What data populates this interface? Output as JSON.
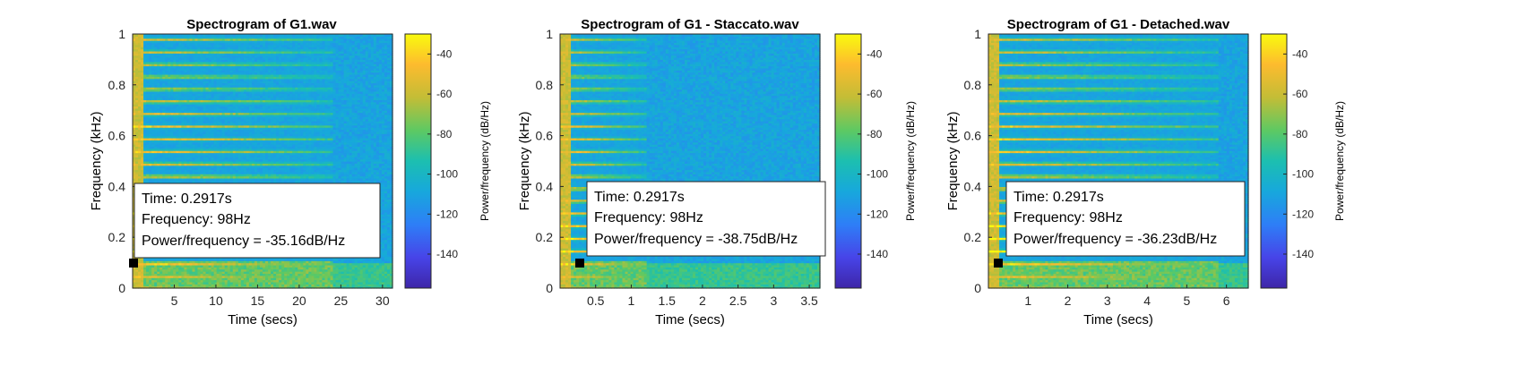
{
  "chart_data": [
    {
      "type": "heatmap",
      "title": "Spectrogram of G1.wav",
      "xlabel": "Time (secs)",
      "ylabel": "Frequency (kHz)",
      "colorbar_label": "Power/frequency (dB/Hz)",
      "xlim": [
        0,
        31.2
      ],
      "ylim": [
        0,
        1
      ],
      "x_ticks": [
        5,
        10,
        15,
        20,
        25,
        30
      ],
      "y_ticks": [
        0,
        0.2,
        0.4,
        0.6,
        0.8,
        1
      ],
      "clim": [
        -157,
        -30
      ],
      "colorbar_ticks": [
        -40,
        -60,
        -80,
        -100,
        -120,
        -140
      ],
      "decay_end_secs": 24,
      "datatip": {
        "time_secs": 0.2917,
        "frequency_hz": 98,
        "time_label": "Time: 0.2917s",
        "frequency_label": "Frequency: 98Hz",
        "power_label": "Power/frequency = -35.16dB/Hz"
      }
    },
    {
      "type": "heatmap",
      "title": "Spectrogram of G1 - Staccato.wav",
      "xlabel": "Time (secs)",
      "ylabel": "Frequency (kHz)",
      "colorbar_label": "Power/frequency (dB/Hz)",
      "xlim": [
        0,
        3.65
      ],
      "ylim": [
        0,
        1
      ],
      "x_ticks": [
        0.5,
        1,
        1.5,
        2,
        2.5,
        3,
        3.5
      ],
      "y_ticks": [
        0,
        0.2,
        0.4,
        0.6,
        0.8,
        1
      ],
      "clim": [
        -157,
        -30
      ],
      "colorbar_ticks": [
        -40,
        -60,
        -80,
        -100,
        -120,
        -140
      ],
      "decay_end_secs": 1.2,
      "datatip": {
        "time_secs": 0.2917,
        "frequency_hz": 98,
        "time_label": "Time: 0.2917s",
        "frequency_label": "Frequency: 98Hz",
        "power_label": "Power/frequency = -38.75dB/Hz"
      }
    },
    {
      "type": "heatmap",
      "title": "Spectrogram of G1 - Detached.wav",
      "xlabel": "Time (secs)",
      "ylabel": "Frequency (kHz)",
      "colorbar_label": "Power/frequency (dB/Hz)",
      "xlim": [
        0,
        6.55
      ],
      "ylim": [
        0,
        1
      ],
      "x_ticks": [
        1,
        2,
        3,
        4,
        5,
        6
      ],
      "y_ticks": [
        0,
        0.2,
        0.4,
        0.6,
        0.8,
        1
      ],
      "clim": [
        -157,
        -30
      ],
      "colorbar_ticks": [
        -40,
        -60,
        -80,
        -100,
        -120,
        -140
      ],
      "decay_end_secs": 5.8,
      "datatip": {
        "time_secs": 0.2917,
        "frequency_hz": 98,
        "time_label": "Time: 0.2917s",
        "frequency_label": "Frequency: 98Hz",
        "power_label": "Power/frequency = -36.23dB/Hz"
      }
    }
  ]
}
